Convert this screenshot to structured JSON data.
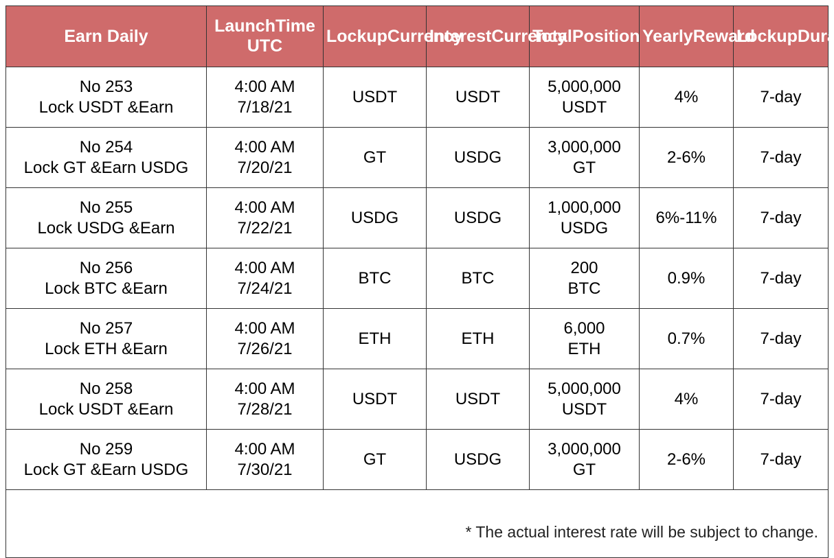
{
  "header_color": "#cf6b6b",
  "columns": [
    [
      "Earn Daily"
    ],
    [
      "Launch",
      "Time UTC"
    ],
    [
      "Lockup",
      "Currency"
    ],
    [
      "Interest",
      "Currency"
    ],
    [
      "Total",
      "Position"
    ],
    [
      "Yearly",
      "Reward"
    ],
    [
      "Lockup",
      "Duration"
    ]
  ],
  "rows": [
    {
      "earn": [
        "No 253",
        "Lock USDT &Earn"
      ],
      "launch": [
        "4:00 AM",
        "7/18/21"
      ],
      "lockup_currency": "USDT",
      "interest_currency": "USDT",
      "total_position": [
        "5,000,000",
        "USDT"
      ],
      "yearly_reward": "4%",
      "duration": "7-day"
    },
    {
      "earn": [
        "No 254",
        "Lock GT &Earn USDG"
      ],
      "launch": [
        "4:00 AM",
        "7/20/21"
      ],
      "lockup_currency": "GT",
      "interest_currency": "USDG",
      "total_position": [
        "3,000,000",
        "GT"
      ],
      "yearly_reward": "2-6%",
      "duration": "7-day"
    },
    {
      "earn": [
        "No 255",
        "Lock USDG &Earn"
      ],
      "launch": [
        "4:00 AM",
        "7/22/21"
      ],
      "lockup_currency": "USDG",
      "interest_currency": "USDG",
      "total_position": [
        "1,000,000",
        "USDG"
      ],
      "yearly_reward": "6%-11%",
      "duration": "7-day"
    },
    {
      "earn": [
        "No 256",
        "Lock BTC &Earn"
      ],
      "launch": [
        "4:00 AM",
        "7/24/21"
      ],
      "lockup_currency": "BTC",
      "interest_currency": "BTC",
      "total_position": [
        "200",
        "BTC"
      ],
      "yearly_reward": "0.9%",
      "duration": "7-day"
    },
    {
      "earn": [
        "No 257",
        "Lock ETH &Earn"
      ],
      "launch": [
        "4:00 AM",
        "7/26/21"
      ],
      "lockup_currency": "ETH",
      "interest_currency": "ETH",
      "total_position": [
        "6,000",
        "ETH"
      ],
      "yearly_reward": "0.7%",
      "duration": "7-day"
    },
    {
      "earn": [
        "No 258",
        "Lock USDT &Earn"
      ],
      "launch": [
        "4:00 AM",
        "7/28/21"
      ],
      "lockup_currency": "USDT",
      "interest_currency": "USDT",
      "total_position": [
        "5,000,000",
        "USDT"
      ],
      "yearly_reward": "4%",
      "duration": "7-day"
    },
    {
      "earn": [
        "No 259",
        "Lock GT &Earn USDG"
      ],
      "launch": [
        "4:00 AM",
        "7/30/21"
      ],
      "lockup_currency": "GT",
      "interest_currency": "USDG",
      "total_position": [
        "3,000,000",
        "GT"
      ],
      "yearly_reward": "2-6%",
      "duration": "7-day"
    }
  ],
  "footnote": "* The actual interest rate will be subject to change."
}
